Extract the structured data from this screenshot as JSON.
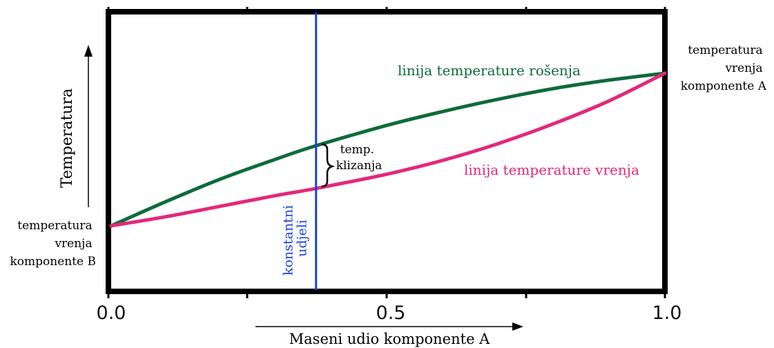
{
  "chart_data": {
    "type": "line",
    "title": "",
    "xlabel": "Maseni udio komponente A",
    "ylabel": "Temperatura",
    "xlim": [
      0,
      1
    ],
    "x_ticks": [
      "0.0",
      "0.5",
      "1.0"
    ],
    "series": [
      {
        "name": "linija temperature rošenja",
        "color": "#0f6b3a",
        "points": [
          [
            0.0,
            0.0
          ],
          [
            0.1,
            0.16
          ],
          [
            0.2,
            0.31
          ],
          [
            0.3,
            0.44
          ],
          [
            0.37,
            0.525
          ],
          [
            0.5,
            0.66
          ],
          [
            0.6,
            0.75
          ],
          [
            0.7,
            0.83
          ],
          [
            0.8,
            0.9
          ],
          [
            0.9,
            0.955
          ],
          [
            1.0,
            1.0
          ]
        ]
      },
      {
        "name": "linija temperature vrenja",
        "color": "#e3287a",
        "points": [
          [
            0.0,
            0.0
          ],
          [
            0.1,
            0.06
          ],
          [
            0.2,
            0.13
          ],
          [
            0.3,
            0.2
          ],
          [
            0.37,
            0.245
          ],
          [
            0.5,
            0.34
          ],
          [
            0.6,
            0.43
          ],
          [
            0.7,
            0.54
          ],
          [
            0.8,
            0.67
          ],
          [
            0.9,
            0.82
          ],
          [
            1.0,
            1.0
          ]
        ]
      }
    ],
    "vertical_line": {
      "x": 0.37,
      "label_lines": [
        "konstantni",
        "udjeli"
      ],
      "color": "#1a3fe0"
    },
    "annotations": {
      "left_end": [
        "temperatura",
        "vrenja",
        "komponente B"
      ],
      "right_end": [
        "temperatura",
        "vrenja",
        "komponente A"
      ],
      "glide": [
        "temp.",
        "klizanja"
      ]
    }
  }
}
